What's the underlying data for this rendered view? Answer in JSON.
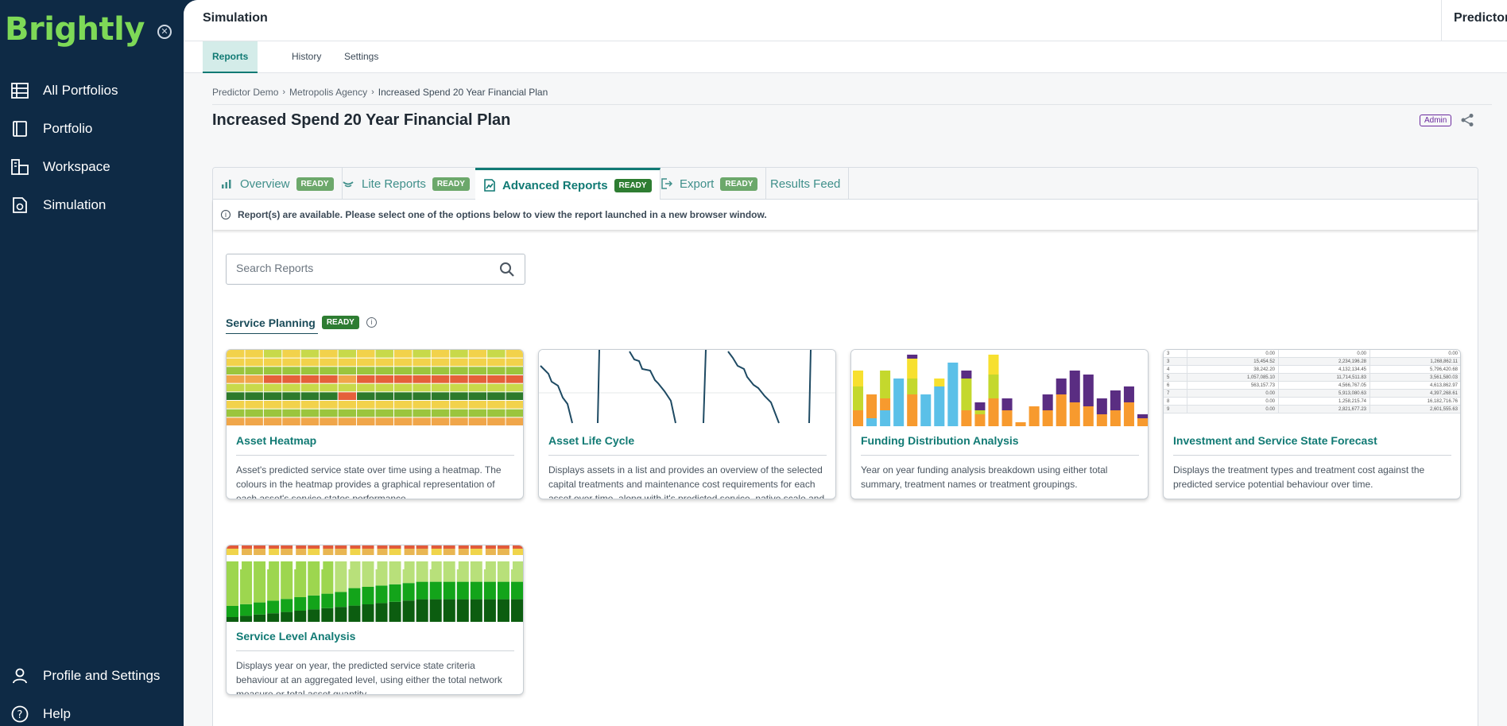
{
  "sidebar": {
    "logo": "Brightly",
    "items": [
      {
        "label": "All Portfolios",
        "icon": "portfolios-icon"
      },
      {
        "label": "Portfolio",
        "icon": "book-icon"
      },
      {
        "label": "Workspace",
        "icon": "workspace-icon"
      },
      {
        "label": "Simulation",
        "icon": "simulation-icon"
      }
    ],
    "bottom_items": [
      {
        "label": "Profile and Settings",
        "icon": "user-icon"
      },
      {
        "label": "Help",
        "icon": "help-icon"
      }
    ]
  },
  "header": {
    "title": "Simulation",
    "right_label": "Predictor"
  },
  "subtabs": [
    "Reports",
    "History",
    "Settings"
  ],
  "breadcrumb": [
    "Predictor Demo",
    "Metropolis Agency",
    "Increased Spend 20 Year Financial Plan"
  ],
  "page_title": "Increased Spend 20 Year Financial Plan",
  "admin_badge": "Admin",
  "report_tabs": [
    {
      "label": "Overview",
      "badge": "READY"
    },
    {
      "label": "Lite Reports",
      "badge": "READY"
    },
    {
      "label": "Advanced Reports",
      "badge": "READY"
    },
    {
      "label": "Export",
      "badge": "READY"
    },
    {
      "label": "Results Feed"
    }
  ],
  "info_message": "Report(s) are available. Please select one of the options below to view the report launched in a new browser window.",
  "search": {
    "placeholder": "Search Reports"
  },
  "section": {
    "title": "Service Planning",
    "badge": "READY"
  },
  "cards": [
    {
      "title": "Asset Heatmap",
      "description": "Asset's predicted service state over time using a heatmap. The colours in the heatmap provides a graphical representation of each asset's service states performance."
    },
    {
      "title": "Asset Life Cycle",
      "description": "Displays assets in a list and provides an overview of the selected capital treatments and maintenance cost requirements for each asset over time, along with it's predicted service, native scale and risk behaviour."
    },
    {
      "title": "Funding Distribution Analysis",
      "description": "Year on year funding analysis breakdown using either total summary, treatment names or treatment groupings."
    },
    {
      "title": "Investment and Service State Forecast",
      "description": "Displays the treatment types and treatment cost against the predicted service potential behaviour over time."
    },
    {
      "title": "Service Level Analysis",
      "description": "Displays year on year, the predicted service state criteria behaviour at an aggregated level, using either the total network measure or total asset quantity."
    }
  ],
  "thumb_table": [
    [
      "3",
      "0.00",
      "0.00",
      "0.00"
    ],
    [
      "3",
      "15,454.52",
      "2,234,196.28",
      "1,268,862.11"
    ],
    [
      "4",
      "38,242.20",
      "4,132,134.45",
      "5,796,420.68"
    ],
    [
      "5",
      "1,057,085.10",
      "11,714,511.83",
      "3,561,580.03"
    ],
    [
      "6",
      "563,157.73",
      "4,566,767.05",
      "4,613,862.97"
    ],
    [
      "7",
      "0.00",
      "5,913,080.63",
      "4,397,268.61"
    ],
    [
      "8",
      "0.00",
      "1,258,215.74",
      "16,182,716.76"
    ],
    [
      "9",
      "0.00",
      "2,821,677.23",
      "2,601,555.63"
    ]
  ],
  "colors": {
    "sidebar_bg": "#0e2a45",
    "accent": "#117a74",
    "ready_badge": "#2e7d32",
    "logo": "#7ed957"
  }
}
